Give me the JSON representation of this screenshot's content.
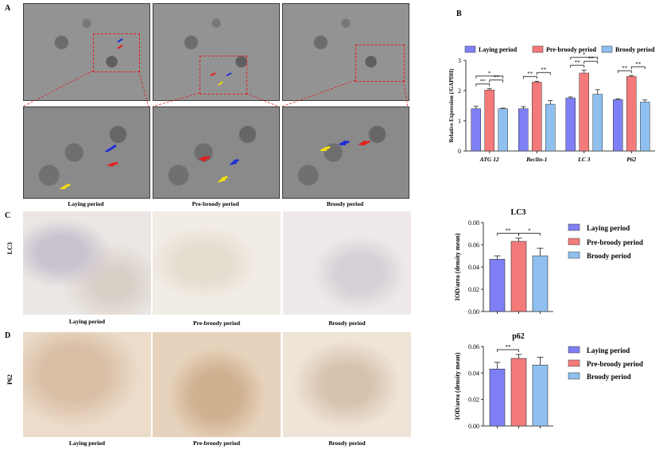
{
  "panels": {
    "a": "A",
    "b": "B",
    "c": "C",
    "d": "D"
  },
  "periods": {
    "laying": "Laying period",
    "prebroody": "Pre-broody period",
    "broody": "Broody period"
  },
  "row_labels": {
    "lc3": "LC3",
    "p62": "P62"
  },
  "colors": {
    "laying": "#7f7ff5",
    "prebroody": "#f47a7a",
    "broody": "#8fc0ef",
    "arrow_red": "#e31e1e",
    "arrow_blue": "#1f2fd6",
    "arrow_yellow": "#f2dc10"
  },
  "chart_data": [
    {
      "id": "B",
      "type": "bar",
      "title": "",
      "ylabel": "Relative Expression (/GAPDH)",
      "ylim": [
        0,
        3
      ],
      "yticks": [
        "0",
        "1",
        "2",
        "3"
      ],
      "categories": [
        "ATG 12",
        "Beclin-1",
        "LC 3",
        "P62"
      ],
      "series": [
        {
          "name": "Laying period",
          "values": [
            1.4,
            1.4,
            1.75,
            1.7
          ],
          "errors": [
            0.08,
            0.07,
            0.04,
            0.03
          ]
        },
        {
          "name": "Pre-broody period",
          "values": [
            2.02,
            2.28,
            2.58,
            2.47
          ],
          "errors": [
            0.04,
            0.03,
            0.1,
            0.03
          ]
        },
        {
          "name": "Broody period",
          "values": [
            1.4,
            1.55,
            1.88,
            1.62
          ],
          "errors": [
            0.02,
            0.12,
            0.15,
            0.07
          ]
        }
      ],
      "significance": [
        {
          "group": 0,
          "pairs": [
            [
              "**",
              0,
              1
            ],
            [
              "**",
              1,
              2
            ],
            [
              "*",
              0,
              2
            ]
          ]
        },
        {
          "group": 1,
          "pairs": [
            [
              "**",
              0,
              1
            ],
            [
              "**",
              1,
              2
            ]
          ]
        },
        {
          "group": 2,
          "pairs": [
            [
              "**",
              0,
              1
            ],
            [
              "**",
              1,
              2
            ],
            [
              "*",
              0,
              2
            ]
          ]
        },
        {
          "group": 3,
          "pairs": [
            [
              "**",
              0,
              1
            ],
            [
              "**",
              1,
              2
            ]
          ]
        }
      ]
    },
    {
      "id": "C",
      "type": "bar",
      "title": "LC3",
      "ylabel": "IOD/area (density mean)",
      "ylim": [
        0,
        0.08
      ],
      "yticks": [
        "0.00",
        "0.02",
        "0.04",
        "0.06",
        "0.08"
      ],
      "categories": [
        "Laying period",
        "Pre-broody period",
        "Broody period"
      ],
      "series": [
        {
          "name": "LC3",
          "values": [
            0.047,
            0.063,
            0.05
          ],
          "errors": [
            0.003,
            0.003,
            0.007
          ]
        }
      ],
      "significance": [
        [
          "**",
          0,
          1
        ],
        [
          "*",
          1,
          2
        ]
      ]
    },
    {
      "id": "D",
      "type": "bar",
      "title": "p62",
      "ylabel": "IOD/area (density mean)",
      "ylim": [
        0,
        0.06
      ],
      "yticks": [
        "0.00",
        "0.02",
        "0.04",
        "0.06"
      ],
      "categories": [
        "Laying period",
        "Pre-broody period",
        "Broody period"
      ],
      "series": [
        {
          "name": "p62",
          "values": [
            0.043,
            0.051,
            0.046
          ],
          "errors": [
            0.005,
            0.003,
            0.006
          ]
        }
      ],
      "significance": [
        [
          "**",
          0,
          1
        ]
      ]
    }
  ]
}
